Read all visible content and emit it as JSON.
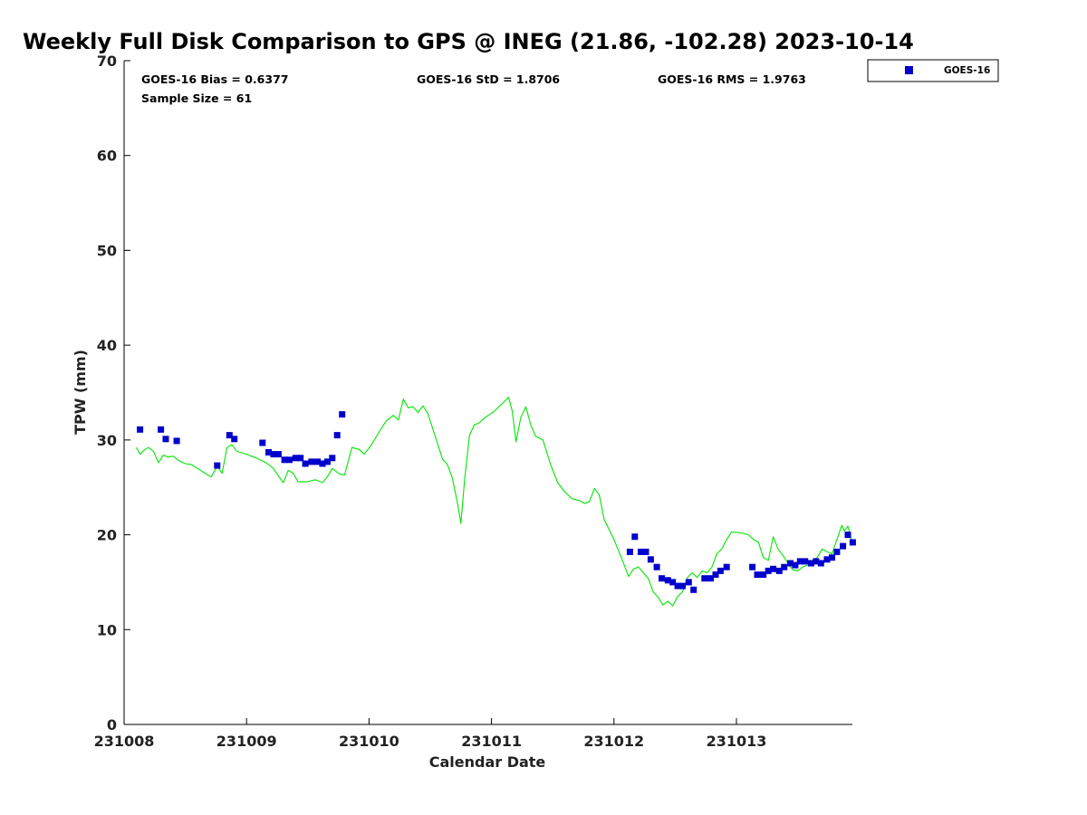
{
  "chart_data": {
    "type": "scatter",
    "title": "Weekly Full Disk Comparison to GPS @ INEG (21.86, -102.28) 2023-10-14",
    "xlabel": "Calendar Date",
    "ylabel": "TPW (mm)",
    "xlim": [
      231008.0,
      231013.95
    ],
    "ylim": [
      0,
      70
    ],
    "x_ticks": [
      {
        "value": 231008,
        "label": "231008"
      },
      {
        "value": 231009,
        "label": "231009"
      },
      {
        "value": 231010,
        "label": "231010"
      },
      {
        "value": 231011,
        "label": "231011"
      },
      {
        "value": 231012,
        "label": "231012"
      },
      {
        "value": 231013,
        "label": "231013"
      }
    ],
    "y_ticks": [
      0,
      10,
      20,
      30,
      40,
      50,
      60,
      70
    ],
    "stats": {
      "bias": "GOES-16 Bias = 0.6377",
      "std": "GOES-16 StD = 1.8706",
      "rms": "GOES-16 RMS = 1.9763",
      "sample": "Sample Size = 61"
    },
    "legend": {
      "placement": "top-right",
      "entries": [
        {
          "name": "GOES-16",
          "color": "#0000cc",
          "marker": "square"
        }
      ]
    },
    "series": [
      {
        "name": "GOES-16",
        "color": "#0000cc",
        "marker": "square",
        "points": [
          [
            231008.13,
            31.1
          ],
          [
            231008.3,
            31.1
          ],
          [
            231008.34,
            30.1
          ],
          [
            231008.43,
            29.9
          ],
          [
            231008.76,
            27.3
          ],
          [
            231008.86,
            30.5
          ],
          [
            231008.9,
            30.1
          ],
          [
            231009.13,
            29.7
          ],
          [
            231009.18,
            28.7
          ],
          [
            231009.22,
            28.5
          ],
          [
            231009.26,
            28.5
          ],
          [
            231009.31,
            27.9
          ],
          [
            231009.35,
            27.9
          ],
          [
            231009.4,
            28.1
          ],
          [
            231009.44,
            28.1
          ],
          [
            231009.48,
            27.5
          ],
          [
            231009.53,
            27.7
          ],
          [
            231009.58,
            27.7
          ],
          [
            231009.62,
            27.5
          ],
          [
            231009.66,
            27.7
          ],
          [
            231009.7,
            28.1
          ],
          [
            231009.74,
            30.5
          ],
          [
            231009.78,
            32.7
          ],
          [
            231012.13,
            18.2
          ],
          [
            231012.17,
            19.8
          ],
          [
            231012.22,
            18.2
          ],
          [
            231012.26,
            18.2
          ],
          [
            231012.3,
            17.4
          ],
          [
            231012.35,
            16.6
          ],
          [
            231012.39,
            15.4
          ],
          [
            231012.44,
            15.2
          ],
          [
            231012.48,
            15.0
          ],
          [
            231012.52,
            14.6
          ],
          [
            231012.56,
            14.6
          ],
          [
            231012.61,
            15.0
          ],
          [
            231012.65,
            14.2
          ],
          [
            231012.74,
            15.4
          ],
          [
            231012.79,
            15.4
          ],
          [
            231012.83,
            15.8
          ],
          [
            231012.87,
            16.2
          ],
          [
            231012.92,
            16.6
          ],
          [
            231013.13,
            16.6
          ],
          [
            231013.17,
            15.8
          ],
          [
            231013.22,
            15.8
          ],
          [
            231013.26,
            16.2
          ],
          [
            231013.3,
            16.4
          ],
          [
            231013.35,
            16.2
          ],
          [
            231013.39,
            16.6
          ],
          [
            231013.44,
            17.0
          ],
          [
            231013.48,
            16.8
          ],
          [
            231013.52,
            17.2
          ],
          [
            231013.56,
            17.2
          ],
          [
            231013.61,
            17.0
          ],
          [
            231013.65,
            17.2
          ],
          [
            231013.69,
            17.0
          ],
          [
            231013.74,
            17.4
          ],
          [
            231013.78,
            17.6
          ],
          [
            231013.82,
            18.2
          ],
          [
            231013.87,
            18.8
          ],
          [
            231013.91,
            20.0
          ],
          [
            231013.95,
            19.2
          ]
        ]
      },
      {
        "color": "#00e600",
        "type": "line",
        "points": [
          [
            231008.1,
            29.2
          ],
          [
            231008.13,
            28.5
          ],
          [
            231008.17,
            29.0
          ],
          [
            231008.2,
            29.2
          ],
          [
            231008.24,
            28.8
          ],
          [
            231008.28,
            27.6
          ],
          [
            231008.32,
            28.4
          ],
          [
            231008.36,
            28.2
          ],
          [
            231008.4,
            28.3
          ],
          [
            231008.45,
            27.8
          ],
          [
            231008.5,
            27.5
          ],
          [
            231008.55,
            27.4
          ],
          [
            231008.6,
            27.0
          ],
          [
            231008.66,
            26.5
          ],
          [
            231008.71,
            26.1
          ],
          [
            231008.76,
            27.2
          ],
          [
            231008.8,
            26.5
          ],
          [
            231008.84,
            29.2
          ],
          [
            231008.88,
            29.5
          ],
          [
            231008.92,
            28.8
          ],
          [
            231009.0,
            28.5
          ],
          [
            231009.08,
            28.1
          ],
          [
            231009.16,
            27.6
          ],
          [
            231009.22,
            27.0
          ],
          [
            231009.26,
            26.2
          ],
          [
            231009.3,
            25.5
          ],
          [
            231009.34,
            26.8
          ],
          [
            231009.38,
            26.5
          ],
          [
            231009.42,
            25.6
          ],
          [
            231009.5,
            25.6
          ],
          [
            231009.56,
            25.8
          ],
          [
            231009.62,
            25.5
          ],
          [
            231009.66,
            26.1
          ],
          [
            231009.7,
            27.0
          ],
          [
            231009.76,
            26.4
          ],
          [
            231009.8,
            26.3
          ],
          [
            231009.86,
            29.2
          ],
          [
            231009.92,
            29.0
          ],
          [
            231009.96,
            28.5
          ],
          [
            231010.02,
            29.5
          ],
          [
            231010.08,
            30.8
          ],
          [
            231010.14,
            32.0
          ],
          [
            231010.2,
            32.6
          ],
          [
            231010.24,
            32.1
          ],
          [
            231010.28,
            34.3
          ],
          [
            231010.32,
            33.4
          ],
          [
            231010.36,
            33.5
          ],
          [
            231010.4,
            32.9
          ],
          [
            231010.44,
            33.6
          ],
          [
            231010.48,
            32.8
          ],
          [
            231010.52,
            31.2
          ],
          [
            231010.56,
            29.6
          ],
          [
            231010.6,
            28.0
          ],
          [
            231010.64,
            27.4
          ],
          [
            231010.68,
            26.0
          ],
          [
            231010.72,
            23.5
          ],
          [
            231010.75,
            21.2
          ],
          [
            231010.78,
            25.8
          ],
          [
            231010.82,
            30.5
          ],
          [
            231010.86,
            31.6
          ],
          [
            231010.9,
            31.8
          ],
          [
            231010.94,
            32.3
          ],
          [
            231011.02,
            33.0
          ],
          [
            231011.1,
            34.0
          ],
          [
            231011.14,
            34.5
          ],
          [
            231011.17,
            33.0
          ],
          [
            231011.2,
            29.8
          ],
          [
            231011.24,
            32.4
          ],
          [
            231011.28,
            33.5
          ],
          [
            231011.32,
            31.6
          ],
          [
            231011.36,
            30.4
          ],
          [
            231011.42,
            30.0
          ],
          [
            231011.48,
            27.5
          ],
          [
            231011.54,
            25.5
          ],
          [
            231011.6,
            24.5
          ],
          [
            231011.66,
            23.8
          ],
          [
            231011.72,
            23.6
          ],
          [
            231011.76,
            23.3
          ],
          [
            231011.8,
            23.5
          ],
          [
            231011.84,
            24.9
          ],
          [
            231011.88,
            24.2
          ],
          [
            231011.92,
            21.6
          ],
          [
            231012.0,
            19.5
          ],
          [
            231012.06,
            17.6
          ],
          [
            231012.12,
            15.6
          ],
          [
            231012.16,
            16.4
          ],
          [
            231012.2,
            16.6
          ],
          [
            231012.24,
            16.0
          ],
          [
            231012.28,
            15.4
          ],
          [
            231012.32,
            14.0
          ],
          [
            231012.36,
            13.4
          ],
          [
            231012.4,
            12.6
          ],
          [
            231012.44,
            13.0
          ],
          [
            231012.48,
            12.5
          ],
          [
            231012.52,
            13.5
          ],
          [
            231012.56,
            14.0
          ],
          [
            231012.6,
            15.5
          ],
          [
            231012.64,
            16.0
          ],
          [
            231012.68,
            15.5
          ],
          [
            231012.72,
            16.2
          ],
          [
            231012.76,
            16.0
          ],
          [
            231012.8,
            16.6
          ],
          [
            231012.84,
            18.0
          ],
          [
            231012.88,
            18.5
          ],
          [
            231012.92,
            19.5
          ],
          [
            231012.96,
            20.3
          ],
          [
            231013.04,
            20.2
          ],
          [
            231013.1,
            20.0
          ],
          [
            231013.14,
            19.5
          ],
          [
            231013.18,
            19.2
          ],
          [
            231013.22,
            17.6
          ],
          [
            231013.26,
            17.3
          ],
          [
            231013.3,
            19.8
          ],
          [
            231013.34,
            18.5
          ],
          [
            231013.38,
            17.8
          ],
          [
            231013.42,
            17.0
          ],
          [
            231013.46,
            16.3
          ],
          [
            231013.5,
            16.2
          ],
          [
            231013.54,
            16.6
          ],
          [
            231013.58,
            16.8
          ],
          [
            231013.62,
            17.3
          ],
          [
            231013.66,
            17.6
          ],
          [
            231013.7,
            18.5
          ],
          [
            231013.74,
            18.2
          ],
          [
            231013.78,
            18.0
          ],
          [
            231013.82,
            19.5
          ],
          [
            231013.86,
            21.0
          ],
          [
            231013.88,
            20.4
          ],
          [
            231013.91,
            20.9
          ],
          [
            231013.95,
            19.0
          ]
        ]
      }
    ]
  }
}
